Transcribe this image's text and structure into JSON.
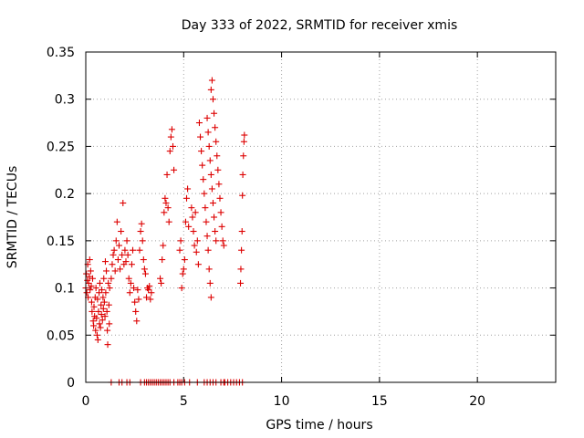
{
  "chart_data": {
    "type": "scatter",
    "title": "Day 333 of 2022, SRMTID for receiver xmis",
    "xlabel": "GPS time / hours",
    "ylabel": "SRMTID / TECUs",
    "xlim": [
      0,
      24
    ],
    "ylim": [
      0,
      0.35
    ],
    "x_ticks": [
      0,
      5,
      10,
      15,
      20
    ],
    "x_tick_labels": [
      "0",
      "5",
      "10",
      "15",
      "20"
    ],
    "y_ticks": [
      0,
      0.05,
      0.1,
      0.15,
      0.2,
      0.25,
      0.3,
      0.35
    ],
    "y_tick_labels": [
      "0",
      "0.05",
      "0.1",
      "0.15",
      "0.2",
      "0.25",
      "0.3",
      "0.35"
    ],
    "grid": true,
    "marker": "plus",
    "color": "#dd0000",
    "series": [
      {
        "values": [
          [
            0.0,
            0.1
          ],
          [
            0.03,
            0.115
          ],
          [
            0.05,
            0.095
          ],
          [
            0.08,
            0.108
          ],
          [
            0.1,
            0.125
          ],
          [
            0.12,
            0.09
          ],
          [
            0.15,
            0.105
          ],
          [
            0.18,
            0.112
          ],
          [
            0.2,
            0.13
          ],
          [
            0.22,
            0.098
          ],
          [
            0.25,
            0.118
          ],
          [
            0.28,
            0.102
          ],
          [
            0.3,
            0.085
          ],
          [
            0.32,
            0.075
          ],
          [
            0.35,
            0.11
          ],
          [
            0.38,
            0.065
          ],
          [
            0.4,
            0.06
          ],
          [
            0.42,
            0.08
          ],
          [
            0.45,
            0.07
          ],
          [
            0.48,
            0.09
          ],
          [
            0.5,
            0.055
          ],
          [
            0.52,
            0.1
          ],
          [
            0.55,
            0.068
          ],
          [
            0.58,
            0.05
          ],
          [
            0.6,
            0.088
          ],
          [
            0.62,
            0.045
          ],
          [
            0.65,
            0.075
          ],
          [
            0.68,
            0.095
          ],
          [
            0.7,
            0.062
          ],
          [
            0.72,
            0.105
          ],
          [
            0.75,
            0.058
          ],
          [
            0.78,
            0.082
          ],
          [
            0.8,
            0.072
          ],
          [
            0.82,
            0.098
          ],
          [
            0.85,
            0.066
          ],
          [
            0.88,
            0.09
          ],
          [
            0.9,
            0.078
          ],
          [
            0.92,
            0.11
          ],
          [
            0.95,
            0.085
          ],
          [
            0.98,
            0.07
          ],
          [
            1.0,
            0.128
          ],
          [
            1.02,
            0.095
          ],
          [
            1.05,
            0.118
          ],
          [
            1.08,
            0.075
          ],
          [
            1.1,
            0.055
          ],
          [
            1.12,
            0.04
          ],
          [
            1.15,
            0.105
          ],
          [
            1.18,
            0.082
          ],
          [
            1.2,
            0.062
          ],
          [
            1.22,
            0.1
          ],
          [
            1.3,
            0.11
          ],
          [
            1.35,
            0.125
          ],
          [
            1.4,
            0.135
          ],
          [
            1.45,
            0.14
          ],
          [
            1.5,
            0.118
          ],
          [
            1.55,
            0.15
          ],
          [
            1.6,
            0.17
          ],
          [
            1.65,
            0.13
          ],
          [
            1.7,
            0.145
          ],
          [
            1.75,
            0.12
          ],
          [
            1.8,
            0.16
          ],
          [
            1.85,
            0.135
          ],
          [
            1.9,
            0.19
          ],
          [
            1.95,
            0.125
          ],
          [
            2.0,
            0.14
          ],
          [
            2.05,
            0.128
          ],
          [
            2.1,
            0.15
          ],
          [
            2.15,
            0.135
          ],
          [
            2.2,
            0.11
          ],
          [
            2.25,
            0.095
          ],
          [
            2.3,
            0.105
          ],
          [
            2.35,
            0.125
          ],
          [
            2.4,
            0.14
          ],
          [
            2.45,
            0.1
          ],
          [
            2.5,
            0.085
          ],
          [
            2.55,
            0.075
          ],
          [
            2.6,
            0.065
          ],
          [
            2.65,
            0.098
          ],
          [
            2.7,
            0.088
          ],
          [
            2.75,
            0.14
          ],
          [
            2.8,
            0.16
          ],
          [
            2.85,
            0.168
          ],
          [
            2.9,
            0.15
          ],
          [
            2.95,
            0.13
          ],
          [
            3.0,
            0.12
          ],
          [
            3.05,
            0.115
          ],
          [
            3.1,
            0.09
          ],
          [
            3.15,
            0.1
          ],
          [
            3.2,
            0.098
          ],
          [
            3.25,
            0.102
          ],
          [
            3.3,
            0.088
          ],
          [
            3.35,
            0.095
          ],
          [
            3.8,
            0.11
          ],
          [
            3.85,
            0.105
          ],
          [
            3.9,
            0.13
          ],
          [
            3.95,
            0.145
          ],
          [
            4.0,
            0.18
          ],
          [
            4.05,
            0.195
          ],
          [
            4.1,
            0.19
          ],
          [
            4.15,
            0.22
          ],
          [
            4.2,
            0.185
          ],
          [
            4.25,
            0.17
          ],
          [
            4.3,
            0.245
          ],
          [
            4.35,
            0.26
          ],
          [
            4.4,
            0.268
          ],
          [
            4.45,
            0.25
          ],
          [
            4.5,
            0.225
          ],
          [
            4.8,
            0.14
          ],
          [
            4.85,
            0.15
          ],
          [
            4.9,
            0.1
          ],
          [
            4.95,
            0.115
          ],
          [
            5.0,
            0.12
          ],
          [
            5.05,
            0.13
          ],
          [
            5.1,
            0.17
          ],
          [
            5.15,
            0.195
          ],
          [
            5.2,
            0.205
          ],
          [
            5.25,
            0.165
          ],
          [
            5.4,
            0.185
          ],
          [
            5.45,
            0.175
          ],
          [
            5.5,
            0.16
          ],
          [
            5.55,
            0.145
          ],
          [
            5.6,
            0.18
          ],
          [
            5.65,
            0.138
          ],
          [
            5.7,
            0.15
          ],
          [
            5.75,
            0.125
          ],
          [
            5.8,
            0.275
          ],
          [
            5.85,
            0.26
          ],
          [
            5.9,
            0.245
          ],
          [
            5.95,
            0.23
          ],
          [
            6.0,
            0.215
          ],
          [
            6.05,
            0.2
          ],
          [
            6.1,
            0.185
          ],
          [
            6.15,
            0.17
          ],
          [
            6.2,
            0.155
          ],
          [
            6.25,
            0.14
          ],
          [
            6.3,
            0.12
          ],
          [
            6.35,
            0.105
          ],
          [
            6.4,
            0.09
          ],
          [
            6.2,
            0.28
          ],
          [
            6.25,
            0.265
          ],
          [
            6.3,
            0.25
          ],
          [
            6.35,
            0.235
          ],
          [
            6.4,
            0.22
          ],
          [
            6.45,
            0.205
          ],
          [
            6.5,
            0.19
          ],
          [
            6.55,
            0.175
          ],
          [
            6.6,
            0.16
          ],
          [
            6.65,
            0.15
          ],
          [
            6.4,
            0.31
          ],
          [
            6.45,
            0.32
          ],
          [
            6.5,
            0.3
          ],
          [
            6.55,
            0.285
          ],
          [
            6.6,
            0.27
          ],
          [
            6.65,
            0.255
          ],
          [
            6.7,
            0.24
          ],
          [
            6.75,
            0.225
          ],
          [
            6.8,
            0.21
          ],
          [
            6.85,
            0.195
          ],
          [
            6.9,
            0.18
          ],
          [
            6.95,
            0.165
          ],
          [
            7.0,
            0.15
          ],
          [
            7.05,
            0.145
          ],
          [
            7.9,
            0.105
          ],
          [
            7.92,
            0.12
          ],
          [
            7.95,
            0.14
          ],
          [
            7.98,
            0.16
          ],
          [
            8.0,
            0.198
          ],
          [
            8.02,
            0.22
          ],
          [
            8.05,
            0.24
          ],
          [
            8.08,
            0.255
          ],
          [
            8.1,
            0.262
          ]
        ]
      },
      {
        "values": [
          [
            1.3,
            0.0
          ],
          [
            1.7,
            0.0
          ],
          [
            1.85,
            0.0
          ],
          [
            2.1,
            0.0
          ],
          [
            2.25,
            0.0
          ],
          [
            2.8,
            0.0
          ],
          [
            3.0,
            0.0
          ],
          [
            3.1,
            0.0
          ],
          [
            3.2,
            0.0
          ],
          [
            3.3,
            0.0
          ],
          [
            3.4,
            0.0
          ],
          [
            3.5,
            0.0
          ],
          [
            3.6,
            0.0
          ],
          [
            3.7,
            0.0
          ],
          [
            3.8,
            0.0
          ],
          [
            3.9,
            0.0
          ],
          [
            4.0,
            0.0
          ],
          [
            4.1,
            0.0
          ],
          [
            4.2,
            0.0
          ],
          [
            4.3,
            0.0
          ],
          [
            4.5,
            0.0
          ],
          [
            4.7,
            0.0
          ],
          [
            4.8,
            0.0
          ],
          [
            4.9,
            0.0
          ],
          [
            5.05,
            0.0
          ],
          [
            5.3,
            0.0
          ],
          [
            5.7,
            0.0
          ],
          [
            6.05,
            0.0
          ],
          [
            6.2,
            0.0
          ],
          [
            6.35,
            0.0
          ],
          [
            6.5,
            0.0
          ],
          [
            6.65,
            0.0
          ],
          [
            6.9,
            0.0
          ],
          [
            7.05,
            0.0
          ],
          [
            7.1,
            0.0
          ],
          [
            7.25,
            0.0
          ],
          [
            7.4,
            0.0
          ],
          [
            7.55,
            0.0
          ],
          [
            7.7,
            0.0
          ],
          [
            7.85,
            0.0
          ],
          [
            8.0,
            0.0
          ]
        ]
      }
    ]
  }
}
